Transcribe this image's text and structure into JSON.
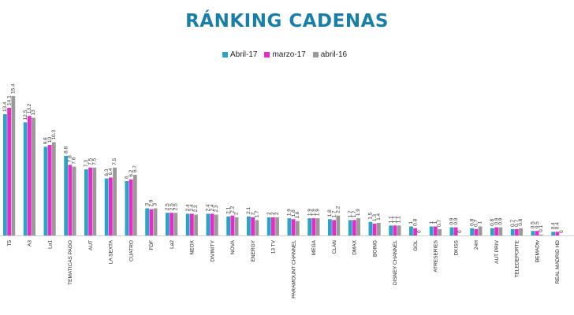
{
  "colors": {
    "title": "#1a7fa8",
    "series": [
      "#2aa3c7",
      "#e62cc8",
      "#9a9a9a"
    ]
  },
  "chart_data": {
    "type": "bar",
    "title": "RÁNKING CADENAS",
    "legend_position": "top-center",
    "xlabel": "",
    "ylabel": "",
    "ylim": [
      0,
      16
    ],
    "categories": [
      "T5",
      "A3",
      "La1",
      "TEMATICAS PAGO",
      "AUT",
      "LA SEXTA",
      "CUATRO",
      "FDF",
      "La2",
      "NEOX",
      "DIVINITY",
      "NOVA",
      "ENERGY",
      "13 TV",
      "PARAMOUNT CHANNEL",
      "MEGA",
      "CLAN",
      "DMAX",
      "BOING",
      "DISNEY CHANNEL",
      "GOL",
      "ATRESERIES",
      "DKISS",
      "24H",
      "AUT PRIV",
      "TELEDEPORTE",
      "BEMADtv",
      "REAL MADRID HD"
    ],
    "series": [
      {
        "name": "Abril-17",
        "values": [
          13.4,
          12.5,
          9.8,
          8.8,
          7.3,
          6.3,
          6.0,
          3.0,
          2.5,
          2.4,
          2.4,
          2.1,
          2.1,
          2.0,
          1.9,
          1.9,
          1.8,
          1.7,
          1.5,
          1.1,
          1.0,
          1.0,
          0.9,
          0.8,
          0.8,
          0.7,
          0.5,
          0.4
        ]
      },
      {
        "name": "marzo-17",
        "values": [
          14.1,
          13.2,
          10.0,
          7.8,
          7.5,
          6.4,
          6.2,
          2.9,
          2.5,
          2.4,
          2.4,
          2.2,
          2.0,
          2.0,
          1.8,
          1.9,
          1.7,
          1.7,
          1.3,
          1.1,
          0.8,
          1.0,
          0.9,
          0.7,
          0.9,
          0.7,
          0.5,
          0.4
        ]
      },
      {
        "name": "abril-16",
        "values": [
          15.4,
          13.0,
          10.3,
          7.6,
          7.5,
          7.5,
          6.7,
          3.0,
          2.5,
          2.3,
          2.3,
          2.0,
          1.7,
          2.0,
          1.6,
          1.9,
          2.2,
          1.9,
          1.4,
          1.1,
          0,
          0.7,
          0,
          1.0,
          0.9,
          0.8,
          0.1,
          0
        ]
      }
    ]
  }
}
